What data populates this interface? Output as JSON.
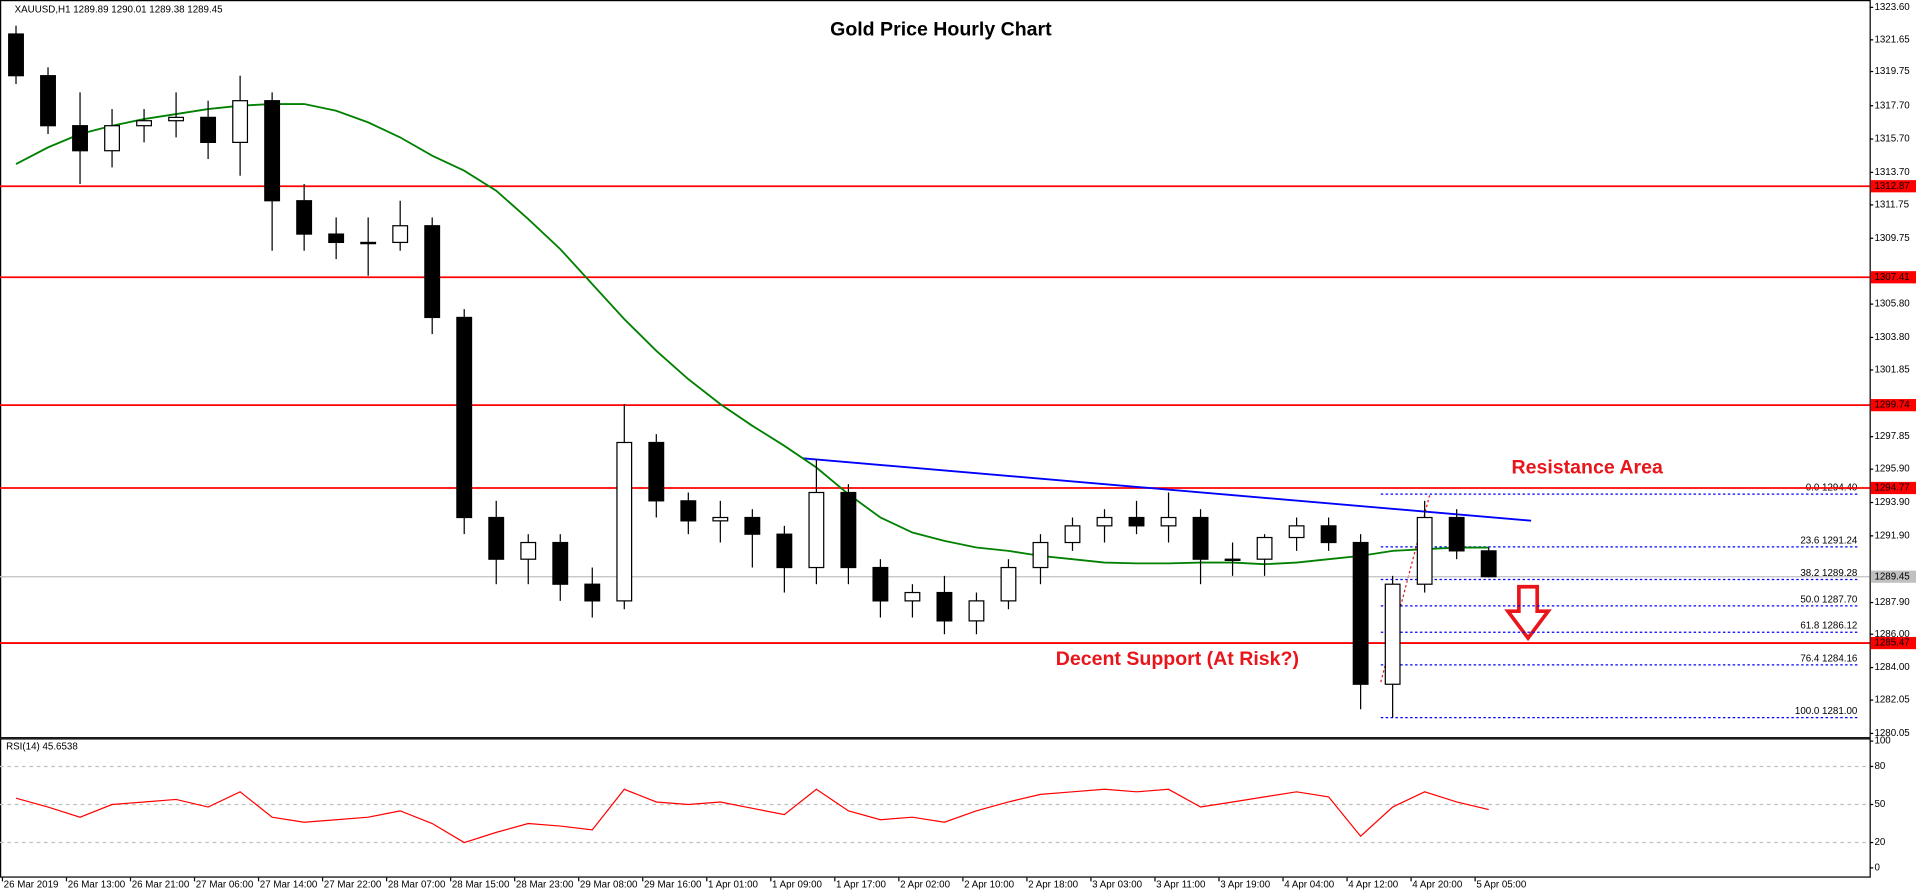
{
  "chart_data": {
    "type": "candlestick",
    "title": "Gold Price Hourly Chart",
    "header": "XAUUSD,H1  1289.89 1290.01 1289.38 1289.45",
    "x_labels": [
      "26 Mar 2019",
      "26 Mar 13:00",
      "26 Mar 21:00",
      "27 Mar 06:00",
      "27 Mar 14:00",
      "27 Mar 22:00",
      "28 Mar 07:00",
      "28 Mar 15:00",
      "28 Mar 23:00",
      "29 Mar 08:00",
      "29 Mar 16:00",
      "1 Apr 01:00",
      "1 Apr 09:00",
      "1 Apr 17:00",
      "2 Apr 02:00",
      "2 Apr 10:00",
      "2 Apr 18:00",
      "3 Apr 03:00",
      "3 Apr 11:00",
      "3 Apr 19:00",
      "4 Apr 04:00",
      "4 Apr 12:00",
      "4 Apr 20:00",
      "5 Apr 05:00"
    ],
    "candles": {
      "open": [
        1322,
        1319.5,
        1316.5,
        1315,
        1316.5,
        1316.8,
        1317,
        1315.5,
        1318,
        1312,
        1310,
        1309.5,
        1309.5,
        1310.5,
        1305,
        1293,
        1290.5,
        1291.5,
        1289,
        1288,
        1297.5,
        1294,
        1292.8,
        1293,
        1292,
        1290,
        1294.5,
        1290,
        1288,
        1288.5,
        1286.8,
        1288,
        1290,
        1291.5,
        1292.5,
        1293,
        1292.5,
        1293,
        1290.5,
        1290.5,
        1291.8,
        1292.5,
        1291.5,
        1283,
        1289,
        1293,
        1291
      ],
      "high": [
        1322.5,
        1320,
        1318.5,
        1317.5,
        1317.5,
        1318.5,
        1318,
        1319.5,
        1318.5,
        1313,
        1311,
        1311,
        1312,
        1311,
        1305.5,
        1294,
        1292,
        1292,
        1290,
        1299.8,
        1298,
        1294.5,
        1294,
        1293.5,
        1292.5,
        1296.5,
        1295,
        1290.5,
        1289,
        1289.5,
        1288.5,
        1290.5,
        1292,
        1293,
        1293.5,
        1294,
        1294.5,
        1293.5,
        1291.5,
        1292,
        1293,
        1293,
        1292,
        1289.5,
        1294,
        1293.5,
        1291.2
      ],
      "low": [
        1319,
        1316,
        1313,
        1314,
        1315.5,
        1315.8,
        1314.5,
        1313.5,
        1309,
        1309,
        1308.5,
        1307.5,
        1309,
        1304,
        1292,
        1289,
        1289,
        1288,
        1287,
        1287.5,
        1293,
        1292,
        1291.5,
        1290,
        1288.5,
        1289,
        1289,
        1287,
        1287,
        1286,
        1286,
        1287.5,
        1289,
        1291,
        1291.5,
        1292,
        1291.5,
        1289,
        1289.5,
        1289.5,
        1291,
        1291,
        1281.5,
        1281,
        1288.5,
        1290.5,
        1289.4
      ],
      "close": [
        1319.5,
        1316.5,
        1315,
        1316.5,
        1316.8,
        1317,
        1315.5,
        1318,
        1312,
        1310,
        1309.5,
        1309.5,
        1310.5,
        1305,
        1293,
        1290.5,
        1291.5,
        1289,
        1288,
        1297.5,
        1294,
        1292.8,
        1293,
        1292,
        1290,
        1294.5,
        1290,
        1288,
        1288.5,
        1286.8,
        1288,
        1290,
        1291.5,
        1292.5,
        1293,
        1292.5,
        1293,
        1290.5,
        1290.5,
        1291.8,
        1292.5,
        1291.5,
        1283,
        1289,
        1293,
        1291,
        1289.45
      ]
    },
    "up_color": "#ffffff",
    "down_color": "#000000",
    "ylim": [
      1279.83,
      1324.04
    ],
    "yticks": [
      {
        "value": 1323.6,
        "label": "1323.60"
      },
      1321.65,
      1319.75,
      {
        "value": 1317.7,
        "label": "1317.70"
      },
      {
        "value": 1315.7,
        "label": "1315.70"
      },
      {
        "value": 1313.7,
        "label": "1313.70"
      },
      1311.75,
      1309.75,
      {
        "value": 1305.8,
        "label": "1305.80"
      },
      {
        "value": 1303.8,
        "label": "1303.80"
      },
      1301.85,
      1297.85,
      {
        "value": 1295.9,
        "label": "1295.90"
      },
      {
        "value": 1293.9,
        "label": "1293.90"
      },
      {
        "value": 1291.9,
        "label": "1291.90"
      },
      {
        "value": 1287.9,
        "label": "1287.90"
      },
      {
        "value": 1286,
        "label": "1286.00"
      },
      {
        "value": 1284,
        "label": "1284.00"
      },
      1282.05,
      1280.05
    ],
    "levels": [
      1312.87,
      1307.41,
      1299.74,
      1294.77,
      1285.47
    ],
    "level_color": "#ff0000",
    "last_price": 1289.45,
    "ma": {
      "color": "#008000",
      "values": [
        1314.2,
        1315.2,
        1316,
        1316.5,
        1316.9,
        1317.2,
        1317.5,
        1317.7,
        1317.8,
        1317.8,
        1317.4,
        1316.7,
        1315.8,
        1314.7,
        1313.8,
        1312.6,
        1310.9,
        1309.1,
        1307,
        1304.9,
        1303,
        1301.3,
        1299.8,
        1298.5,
        1297.3,
        1296,
        1294.4,
        1293,
        1292.1,
        1291.6,
        1291.2,
        1291,
        1290.7,
        1290.5,
        1290.3,
        1290.25,
        1290.25,
        1290.3,
        1290.3,
        1290.2,
        1290.3,
        1290.5,
        1290.7,
        1291,
        1291.1,
        1291.2,
        1291.2
      ]
    },
    "trendline": {
      "start": 1296.55,
      "end": 1292.81,
      "color": "#0000ff"
    },
    "fibonacci": [
      {
        "value": 1294.4,
        "label": "0.0 1294.40"
      },
      {
        "value": 1291.24,
        "label": "23.6 1291.24"
      },
      {
        "value": 1289.28,
        "label": "38.2 1289.28"
      },
      {
        "value": 1287.7,
        "label": "50.0 1287.70"
      },
      {
        "value": 1286.12,
        "label": "61.8 1286.12"
      },
      {
        "value": 1284.16,
        "label": "76.4 1284.16"
      },
      {
        "value": 1281.0,
        "label": "100.0 1281.00"
      }
    ],
    "annotations": [
      "Resistance Area",
      "Decent Support (At Risk?)"
    ],
    "rsi": {
      "label": "RSI(14) 45.6538",
      "color": "#ff0000",
      "ylim": [
        -7.7,
        102.2
      ],
      "yticks": [
        100,
        80,
        50,
        20,
        0
      ],
      "values": [
        55,
        48,
        40,
        50,
        52,
        54,
        48,
        60,
        40,
        36,
        38,
        40,
        45,
        35,
        20,
        28,
        35,
        33,
        30,
        62,
        52,
        50,
        52,
        47,
        42,
        62,
        45,
        38,
        40,
        36,
        45,
        52,
        58,
        60,
        62,
        60,
        62,
        48,
        52,
        56,
        60,
        56,
        25,
        48,
        60,
        52,
        46
      ]
    }
  }
}
